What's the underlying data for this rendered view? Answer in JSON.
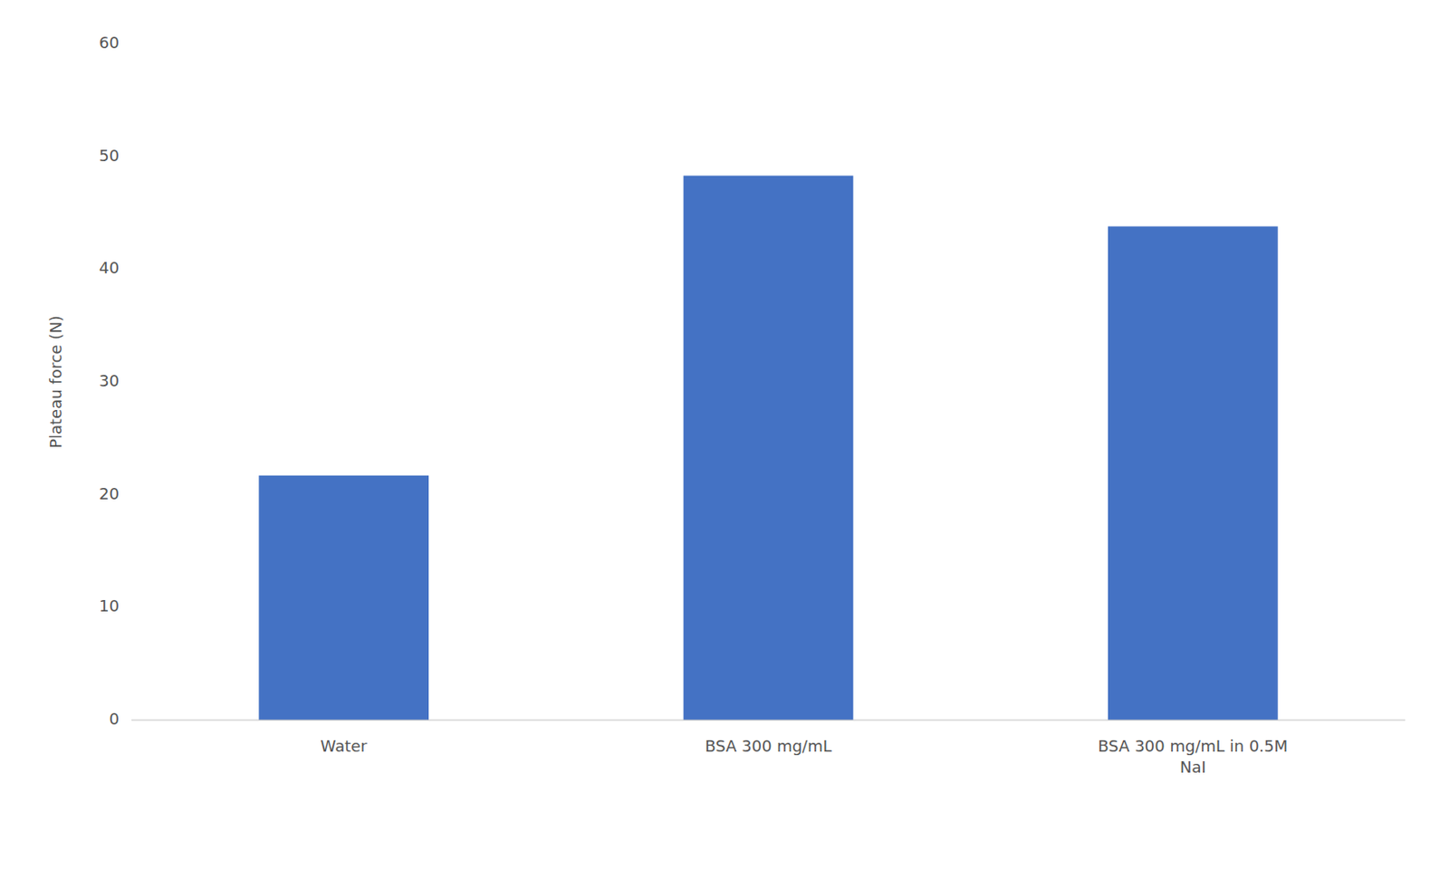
{
  "chart_data": {
    "type": "bar",
    "categories": [
      "Water",
      "BSA 300 mg/mL",
      "BSA 300 mg/mL in 0.5M\nNaI"
    ],
    "values": [
      21.7,
      48.3,
      43.8
    ],
    "color": "#4472C4",
    "ylabel": "Plateau force (N)",
    "ylim": [
      0,
      60
    ],
    "yticks": [
      0,
      10,
      20,
      30,
      40,
      50,
      60
    ],
    "grid": false
  }
}
